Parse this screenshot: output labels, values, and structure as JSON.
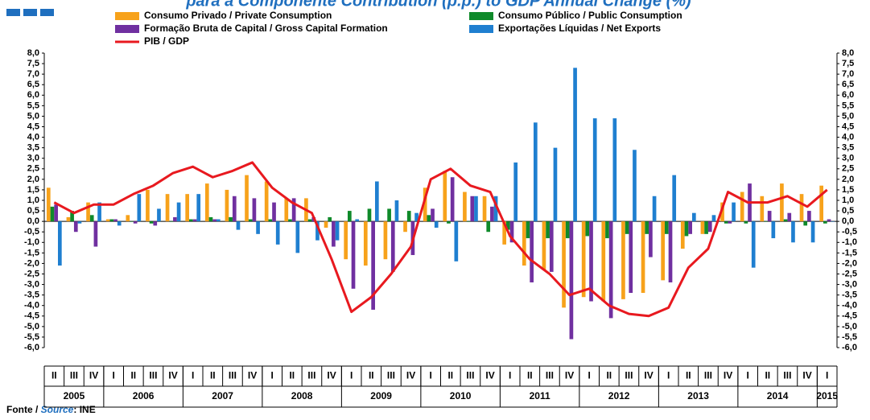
{
  "chart_data": {
    "type": "bar",
    "title": "para a Componente Contribution (p.p.) to GDP Annual Change (%)",
    "categories": [
      "II",
      "III",
      "IV",
      "I",
      "II",
      "III",
      "IV",
      "I",
      "II",
      "III",
      "IV",
      "I",
      "II",
      "III",
      "IV",
      "I",
      "II",
      "III",
      "IV",
      "I",
      "II",
      "III",
      "IV",
      "I",
      "II",
      "III",
      "IV",
      "I",
      "II",
      "III",
      "IV",
      "I",
      "II",
      "III",
      "IV",
      "I",
      "II",
      "III",
      "IV",
      "I"
    ],
    "years": [
      "2005",
      "2006",
      "2007",
      "2008",
      "2009",
      "2010",
      "2011",
      "2012",
      "2013",
      "2014",
      "2015"
    ],
    "series": [
      {
        "name": "Consumo Privado / Private Consumption",
        "color": "#f7a21b",
        "values": [
          1.6,
          0.2,
          0.9,
          0.1,
          0.3,
          1.5,
          1.3,
          1.3,
          1.8,
          1.5,
          2.2,
          1.9,
          1.1,
          1.1,
          -0.3,
          -1.8,
          -2.1,
          -1.8,
          -0.5,
          1.6,
          2.4,
          1.4,
          1.2,
          -1.1,
          -2.1,
          -2.3,
          -4.1,
          -3.6,
          -3.8,
          -3.7,
          -3.4,
          -2.8,
          -1.3,
          -0.6,
          0.9,
          1.4,
          1.2,
          1.8,
          1.3,
          1.7
        ]
      },
      {
        "name": "Consumo Público / Public Consumption",
        "color": "#0f8a2a",
        "values": [
          0.7,
          0.5,
          0.3,
          0.1,
          0.0,
          -0.1,
          0.0,
          0.1,
          0.2,
          0.2,
          0.1,
          0.1,
          0.1,
          0.1,
          0.2,
          0.5,
          0.6,
          0.6,
          0.5,
          0.3,
          -0.1,
          0.0,
          -0.5,
          -0.4,
          -0.8,
          -0.8,
          -0.8,
          -0.7,
          -0.8,
          -0.6,
          -0.6,
          -0.6,
          -0.7,
          -0.6,
          -0.1,
          -0.1,
          0.0,
          0.1,
          -0.2,
          -0.1
        ]
      },
      {
        "name": "Formação Bruta de Capital / Gross Capital Formation",
        "color": "#7030a0",
        "values": [
          0.8,
          -0.5,
          -1.2,
          0.1,
          -0.1,
          -0.2,
          0.2,
          0.1,
          0.1,
          1.2,
          1.1,
          0.9,
          1.1,
          0.2,
          -1.2,
          -3.2,
          -4.2,
          -2.4,
          -1.6,
          0.6,
          2.1,
          1.2,
          0.7,
          -1.0,
          -2.9,
          -2.4,
          -5.6,
          -3.8,
          -4.6,
          -3.4,
          -1.7,
          -2.9,
          -0.6,
          -0.5,
          -0.1,
          1.8,
          0.5,
          0.4,
          0.5,
          0.1
        ]
      },
      {
        "name": "Exportações Líquidas / Net Exports",
        "color": "#1f7fd0",
        "values": [
          -2.1,
          -0.1,
          0.9,
          -0.2,
          1.3,
          0.6,
          0.9,
          1.3,
          0.1,
          -0.4,
          -0.6,
          -1.1,
          -1.5,
          -0.9,
          -0.9,
          0.1,
          1.9,
          1.0,
          0.4,
          -0.3,
          -1.9,
          1.2,
          1.2,
          2.8,
          4.7,
          3.5,
          7.3,
          4.9,
          4.9,
          3.4,
          1.2,
          2.2,
          0.4,
          0.3,
          0.9,
          -2.2,
          -0.8,
          -1.0,
          -1.0,
          0.0
        ]
      },
      {
        "name": "PIB / GDP",
        "color": "#e8191f",
        "type": "line",
        "values": [
          0.9,
          0.4,
          0.8,
          0.8,
          1.3,
          1.7,
          2.3,
          2.6,
          2.1,
          2.4,
          2.8,
          1.6,
          0.9,
          0.4,
          -1.8,
          -4.3,
          -3.6,
          -2.5,
          -1.2,
          2.0,
          2.5,
          1.7,
          1.4,
          -0.7,
          -1.8,
          -2.5,
          -3.5,
          -3.2,
          -4.0,
          -4.4,
          -4.5,
          -4.1,
          -2.2,
          -1.3,
          1.4,
          0.9,
          0.9,
          1.2,
          0.7,
          1.5
        ]
      }
    ],
    "ylim": [
      -6,
      8
    ],
    "yticks": [
      {
        "value": 8,
        "label": "8,0"
      },
      {
        "value": 7.5,
        "label": "7,5"
      },
      {
        "value": 7,
        "label": "7,0"
      },
      {
        "value": 6.5,
        "label": "6,5"
      },
      {
        "value": 6,
        "label": "6,0"
      },
      {
        "value": 5.5,
        "label": "5,5"
      },
      {
        "value": 5,
        "label": "5,0"
      },
      {
        "value": 4.5,
        "label": "4,5"
      },
      {
        "value": 4,
        "label": "4,0"
      },
      {
        "value": 3.5,
        "label": "3,5"
      },
      {
        "value": 3,
        "label": "3,0"
      },
      {
        "value": 2.5,
        "label": "2,5"
      },
      {
        "value": 2,
        "label": "2,0"
      },
      {
        "value": 1.5,
        "label": "1,5"
      },
      {
        "value": 1,
        "label": "1,0"
      },
      {
        "value": 0.5,
        "label": "0,5"
      },
      {
        "value": 0,
        "label": "0,0"
      },
      {
        "value": -0.5,
        "label": "-0,5"
      },
      {
        "value": -1,
        "label": "-1,0"
      },
      {
        "value": -1.5,
        "label": "-1,5"
      },
      {
        "value": -2,
        "label": "-2,0"
      },
      {
        "value": -2.5,
        "label": "-2,5"
      },
      {
        "value": -3,
        "label": "-3,0"
      },
      {
        "value": -3.5,
        "label": "-3,5"
      },
      {
        "value": -4,
        "label": "-4,0"
      },
      {
        "value": -4.5,
        "label": "-4,5"
      },
      {
        "value": -5,
        "label": "-5,0"
      },
      {
        "value": -5.5,
        "label": "-5,5"
      },
      {
        "value": -6,
        "label": "-6,0"
      }
    ],
    "y2lim": [
      -6,
      8
    ],
    "y2ticks": [
      {
        "value": 8,
        "label": "8,0"
      },
      {
        "value": 7.5,
        "label": "7,5"
      },
      {
        "value": 7,
        "label": "7,0"
      },
      {
        "value": 6.5,
        "label": "6,5"
      },
      {
        "value": 6,
        "label": "6,0"
      },
      {
        "value": 5.5,
        "label": "5,5"
      },
      {
        "value": 5,
        "label": "5,0"
      },
      {
        "value": 4.5,
        "label": "4,5"
      },
      {
        "value": 4,
        "label": "4,0"
      },
      {
        "value": 3.5,
        "label": "3,5"
      },
      {
        "value": 3,
        "label": "3,0"
      },
      {
        "value": 2.5,
        "label": "2,5"
      },
      {
        "value": 2,
        "label": "2,0"
      },
      {
        "value": 1.5,
        "label": "1,5"
      },
      {
        "value": 1,
        "label": "1,0"
      },
      {
        "value": 0.5,
        "label": "0,5"
      },
      {
        "value": 0,
        "label": "0,0"
      },
      {
        "value": -0.5,
        "label": "-0,5"
      },
      {
        "value": -1,
        "label": "-1,0"
      },
      {
        "value": -1.5,
        "label": "-1,5"
      },
      {
        "value": -2,
        "label": "-2,0"
      },
      {
        "value": -2.5,
        "label": "-2,5"
      },
      {
        "value": -3,
        "label": "-3,0"
      },
      {
        "value": -3.5,
        "label": "-3,5"
      },
      {
        "value": -4,
        "label": "-4,0"
      },
      {
        "value": -4.5,
        "label": "-4,5"
      },
      {
        "value": -5,
        "label": "-5,0"
      },
      {
        "value": -5.5,
        "label": "-5,5"
      },
      {
        "value": -6,
        "label": "-6,0"
      }
    ],
    "grid": false,
    "source": {
      "prefix": "Fonte / ",
      "label": "Source",
      "suffix": ": INE"
    }
  }
}
